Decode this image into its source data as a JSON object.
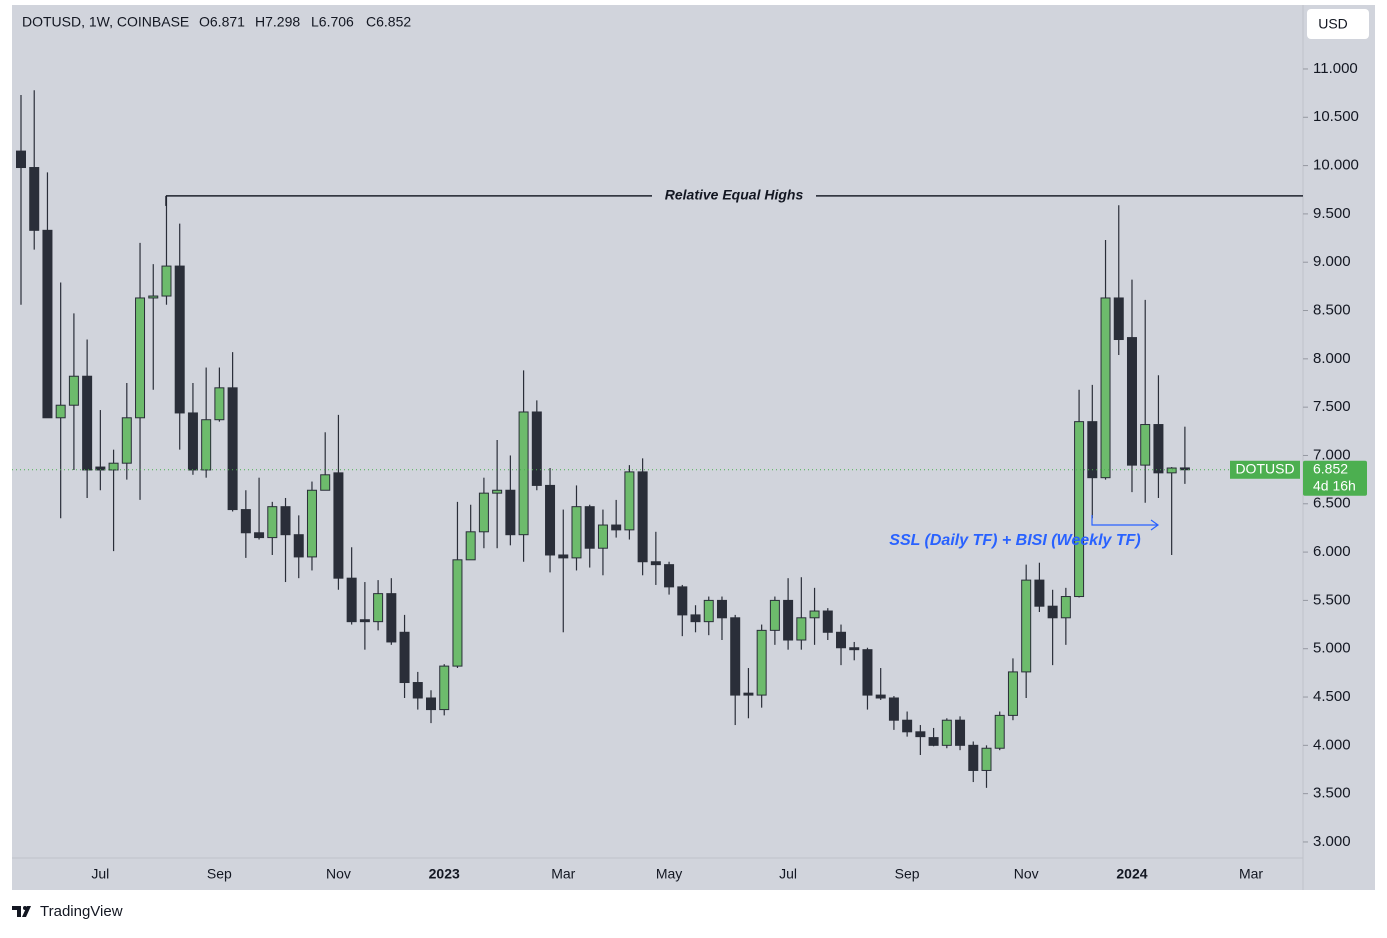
{
  "header": {
    "symbol": "DOTUSD, 1W, COINBASE",
    "ohlc": [
      "O6.871",
      "H7.298",
      "L6.706",
      "C6.852"
    ]
  },
  "currency_button": "USD",
  "brand": "TradingView",
  "chart_data": {
    "type": "candlestick",
    "categories": [
      null,
      null,
      null,
      null,
      null,
      null,
      "Jul",
      null,
      null,
      null,
      null,
      null,
      null,
      null,
      null,
      "Sep",
      null,
      null,
      null,
      null,
      null,
      null,
      null,
      null,
      "Nov",
      null,
      null,
      null,
      null,
      null,
      null,
      null,
      "2023",
      null,
      null,
      null,
      null,
      null,
      null,
      null,
      null,
      "Mar",
      null,
      null,
      null,
      null,
      null,
      null,
      null,
      "May",
      null,
      null,
      null,
      null,
      null,
      null,
      null,
      null,
      "Jul",
      null,
      null,
      null,
      null,
      null,
      null,
      null,
      null,
      "Sep",
      null,
      null,
      null,
      null,
      null,
      null,
      null,
      null,
      "Nov",
      null,
      null,
      null,
      null,
      null,
      null,
      null,
      "2024",
      null,
      null,
      null,
      null,
      null,
      null,
      null,
      null,
      "Mar"
    ],
    "open": [
      10.15,
      9.98,
      9.33,
      7.39,
      7.52,
      7.82,
      6.88,
      6.85,
      6.92,
      7.39,
      8.63,
      8.65,
      8.96,
      7.44,
      6.85,
      7.37,
      7.7,
      6.44,
      6.2,
      6.15,
      6.47,
      6.18,
      5.95,
      6.64,
      6.82,
      5.73,
      5.3,
      5.28,
      5.57,
      5.17,
      4.65,
      4.49,
      4.37,
      4.82,
      5.92,
      6.21,
      6.61,
      6.64,
      6.18,
      7.45,
      6.69,
      5.97,
      5.94,
      6.47,
      6.04,
      6.28,
      6.23,
      6.83,
      5.9,
      5.87,
      5.64,
      5.35,
      5.28,
      5.5,
      5.32,
      4.54,
      4.52,
      5.19,
      5.5,
      5.09,
      5.32,
      5.39,
      5.17,
      5.01,
      4.99,
      4.52,
      4.49,
      4.26,
      4.14,
      4.08,
      4.0,
      4.26,
      4.0,
      3.74,
      3.97,
      4.31,
      4.76,
      5.71,
      5.44,
      5.32,
      5.54,
      7.35,
      6.77,
      8.63,
      8.22,
      6.9,
      7.32,
      6.82,
      6.871,
      null,
      null,
      null,
      null,
      null
    ],
    "high": [
      10.73,
      10.78,
      9.93,
      8.79,
      8.47,
      8.2,
      7.47,
      7.06,
      7.75,
      9.2,
      8.98,
      9.69,
      9.4,
      7.75,
      7.91,
      7.91,
      8.07,
      6.64,
      6.77,
      6.52,
      6.56,
      6.38,
      6.73,
      7.24,
      7.42,
      6.05,
      5.69,
      5.71,
      5.73,
      5.35,
      4.76,
      4.57,
      4.84,
      6.52,
      6.49,
      6.77,
      7.16,
      7.0,
      7.88,
      7.57,
      6.87,
      6.44,
      6.69,
      6.49,
      6.44,
      6.54,
      6.9,
      6.97,
      6.21,
      5.9,
      5.66,
      5.45,
      5.54,
      5.54,
      5.35,
      4.8,
      5.25,
      5.54,
      5.73,
      5.74,
      5.63,
      5.42,
      5.25,
      5.07,
      5.01,
      4.8,
      4.51,
      4.35,
      4.21,
      4.18,
      4.28,
      4.3,
      4.04,
      4.0,
      4.35,
      4.9,
      5.87,
      5.89,
      5.61,
      5.63,
      7.68,
      7.73,
      9.23,
      9.59,
      8.82,
      8.61,
      7.83,
      6.88,
      7.298,
      null,
      null,
      null,
      null,
      null
    ],
    "low": [
      8.56,
      9.13,
      7.39,
      6.35,
      6.85,
      6.56,
      6.64,
      6.01,
      6.75,
      6.54,
      7.68,
      8.56,
      7.06,
      6.8,
      6.77,
      7.35,
      6.42,
      5.94,
      6.13,
      5.97,
      5.69,
      5.73,
      5.81,
      6.64,
      5.61,
      5.25,
      4.99,
      5.19,
      5.04,
      4.49,
      4.37,
      4.23,
      4.31,
      4.8,
      5.92,
      6.04,
      6.04,
      6.07,
      5.9,
      6.64,
      5.79,
      5.17,
      5.81,
      5.84,
      5.76,
      6.15,
      6.13,
      5.76,
      5.66,
      5.56,
      5.13,
      5.17,
      5.14,
      5.09,
      4.21,
      4.28,
      4.39,
      5.04,
      4.99,
      4.99,
      5.04,
      5.09,
      4.83,
      4.88,
      4.37,
      4.47,
      4.16,
      4.09,
      3.9,
      3.99,
      3.97,
      3.95,
      3.62,
      3.56,
      3.95,
      4.26,
      4.49,
      5.38,
      4.83,
      5.04,
      5.53,
      6.35,
      6.75,
      8.04,
      6.62,
      6.51,
      6.56,
      5.97,
      6.706,
      null,
      null,
      null,
      null,
      null
    ],
    "close": [
      9.98,
      9.33,
      7.39,
      7.52,
      7.82,
      6.85,
      6.85,
      6.92,
      7.39,
      8.63,
      8.65,
      8.96,
      7.44,
      6.85,
      7.37,
      7.7,
      6.44,
      6.2,
      6.15,
      6.47,
      6.18,
      5.95,
      6.64,
      6.8,
      5.73,
      5.28,
      5.28,
      5.57,
      5.07,
      4.65,
      4.49,
      4.37,
      4.82,
      5.92,
      6.21,
      6.61,
      6.64,
      6.18,
      7.45,
      6.69,
      5.97,
      5.94,
      6.47,
      6.04,
      6.28,
      6.23,
      6.83,
      5.9,
      5.87,
      5.64,
      5.35,
      5.28,
      5.5,
      5.32,
      4.52,
      4.52,
      5.19,
      5.5,
      5.09,
      5.32,
      5.39,
      5.17,
      5.01,
      4.99,
      4.52,
      4.49,
      4.26,
      4.14,
      4.09,
      4.0,
      4.26,
      4.0,
      3.74,
      3.97,
      4.31,
      4.76,
      5.71,
      5.44,
      5.32,
      5.54,
      7.35,
      6.77,
      8.63,
      8.2,
      6.9,
      7.32,
      6.82,
      6.87,
      6.852,
      null,
      null,
      null,
      null,
      null
    ],
    "up_color": "#6dbb6c",
    "down_color": "#2a2e39",
    "ylim": [
      2.834,
      11.662
    ],
    "yticks": [
      {
        "value": 3,
        "label": "3.000"
      },
      {
        "value": 3.5,
        "label": "3.500"
      },
      {
        "value": 4,
        "label": "4.000"
      },
      {
        "value": 4.5,
        "label": "4.500"
      },
      {
        "value": 5,
        "label": "5.000"
      },
      {
        "value": 5.5,
        "label": "5.500"
      },
      {
        "value": 6,
        "label": "6.000"
      },
      {
        "value": 6.5,
        "label": "6.500"
      },
      {
        "value": 7,
        "label": "7.000"
      },
      {
        "value": 7.5,
        "label": "7.500"
      },
      {
        "value": 8,
        "label": "8.000"
      },
      {
        "value": 8.5,
        "label": "8.500"
      },
      {
        "value": 9,
        "label": "9.000"
      },
      {
        "value": 9.5,
        "label": "9.500"
      },
      {
        "value": 10,
        "label": "10.000"
      },
      {
        "value": 10.5,
        "label": "10.500"
      },
      {
        "value": 11,
        "label": "11.000"
      }
    ],
    "last_price": {
      "symbol": "DOTUSD",
      "value": 6.852,
      "countdown": "4d 16h",
      "color": "#4caf50"
    },
    "annotations": [
      {
        "text": "Relative Equal Highs",
        "value": 9.686,
        "color": "#1e222d"
      },
      {
        "text": "SSL (Daily TF) + BISI (Weekly TF)",
        "value": 6.28,
        "color": "#2962ff"
      }
    ]
  }
}
